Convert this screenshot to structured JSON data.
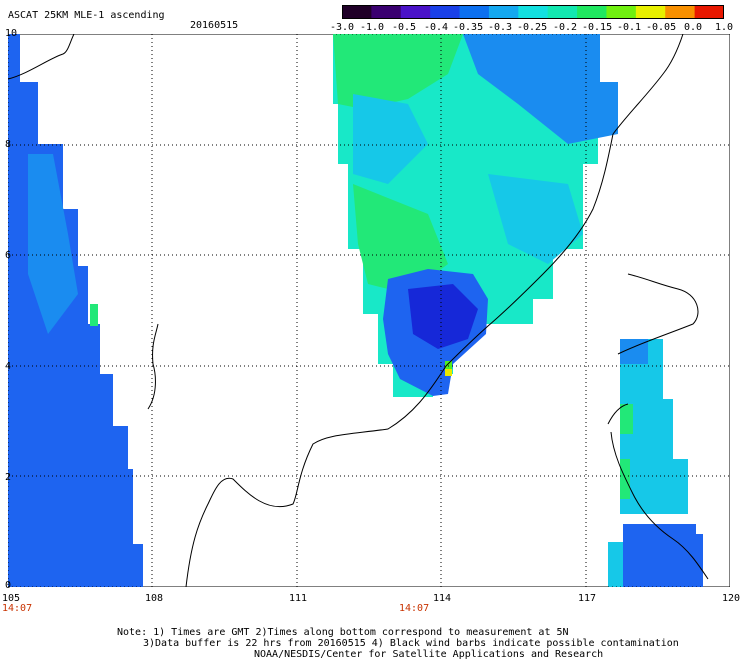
{
  "header": {
    "title": "ASCAT 25KM MLE-1 ascending",
    "date": "20160515"
  },
  "colorbar": {
    "ticks": [
      "-3.0",
      "-1.0",
      "-0.5",
      "-0.4",
      "-0.35",
      "-0.3",
      "-0.25",
      "-0.2",
      "-0.15",
      "-0.1",
      "-0.05",
      "0.0",
      "1.0"
    ],
    "colors": [
      "#200028",
      "#3a0070",
      "#4a12c8",
      "#1a40e8",
      "#0c70f0",
      "#14a8f0",
      "#12e0e0",
      "#12e8b0",
      "#20e860",
      "#70f010",
      "#e8f000",
      "#f89000",
      "#e81800"
    ]
  },
  "map": {
    "lon_labels": [
      "105",
      "108",
      "111",
      "114",
      "117",
      "120"
    ],
    "lat_labels": [
      "10",
      "8",
      "6",
      "4",
      "2",
      "0"
    ],
    "time_labels": [
      "14:07",
      "14:07"
    ],
    "colors": {
      "blue": "#1e64f0",
      "blue_light": "#1a8cf0",
      "deep_blue": "#1628d8",
      "cyan": "#16c8e8",
      "aqua": "#18e8c8",
      "green": "#22e878",
      "lime": "#50f020",
      "yellow": "#e8e800"
    }
  },
  "footer": {
    "note1": "Note: 1) Times are GMT 2)Times along bottom correspond to measurement at 5N",
    "note2": "3)Data buffer is 22 hrs from 20160515 4) Black wind barbs indicate possible contamination",
    "note3": "NOAA/NESDIS/Center for Satellite Applications and Research"
  }
}
